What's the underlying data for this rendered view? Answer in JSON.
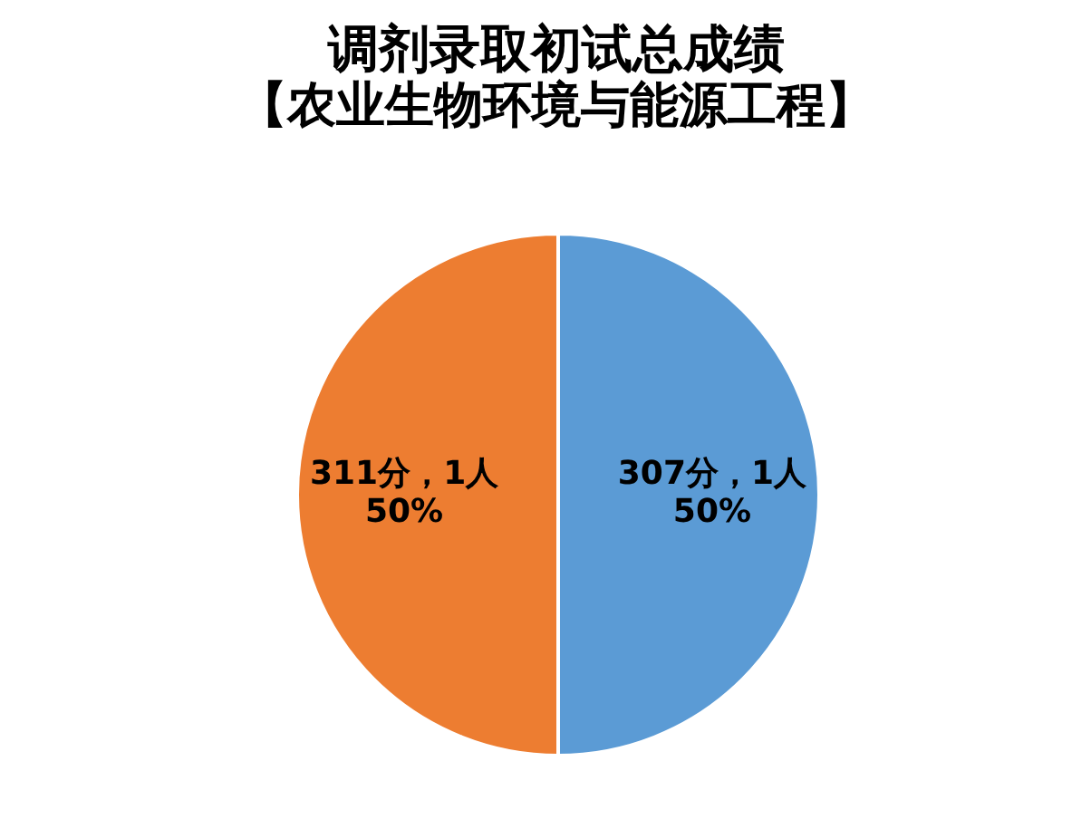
{
  "chart_data": {
    "type": "pie",
    "title": "调剂录取初试总成绩",
    "subtitle": "【农业生物环境与能源工程】",
    "categories": [
      "307分",
      "311分"
    ],
    "values": [
      1,
      1
    ],
    "colors": [
      "#5b9bd5",
      "#ed7d31"
    ],
    "value_labels": [
      "，1人",
      "，1人"
    ],
    "annotations": [
      "50%",
      "50%"
    ]
  }
}
